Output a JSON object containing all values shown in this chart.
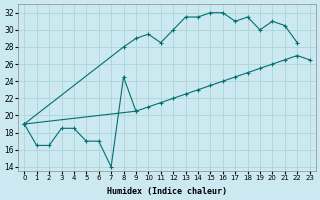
{
  "xlabel": "Humidex (Indice chaleur)",
  "bg_color": "#cce8f0",
  "line_color": "#007070",
  "grid_color": "#b0d8d8",
  "xlim": [
    -0.5,
    23.5
  ],
  "ylim": [
    13.5,
    33.0
  ],
  "xticks": [
    0,
    1,
    2,
    3,
    4,
    5,
    6,
    7,
    8,
    9,
    10,
    11,
    12,
    13,
    14,
    15,
    16,
    17,
    18,
    19,
    20,
    21,
    22,
    23
  ],
  "yticks": [
    14,
    16,
    18,
    20,
    22,
    24,
    26,
    28,
    30,
    32
  ],
  "series1_x": [
    0,
    1,
    2,
    3,
    4,
    5,
    6,
    7,
    8,
    9
  ],
  "series1_y": [
    19,
    16.5,
    16.5,
    18.5,
    18.5,
    17,
    17,
    14,
    24.5,
    20.5
  ],
  "series2_x": [
    0,
    8,
    9,
    10,
    11,
    12,
    13,
    14,
    15,
    16,
    17,
    18,
    19,
    20,
    21,
    22
  ],
  "series2_y": [
    19,
    28,
    29,
    29.5,
    28.5,
    30,
    31.5,
    31.5,
    32,
    32,
    31,
    31.5,
    30,
    31,
    30.5,
    28.5
  ],
  "series3_x": [
    0,
    9,
    10,
    11,
    12,
    13,
    14,
    15,
    16,
    17,
    18,
    19,
    20,
    21,
    22,
    23
  ],
  "series3_y": [
    19,
    20.5,
    21,
    21.5,
    22,
    22.5,
    23,
    23.5,
    24,
    24.5,
    25,
    25.5,
    26,
    26.5,
    27,
    26.5
  ]
}
